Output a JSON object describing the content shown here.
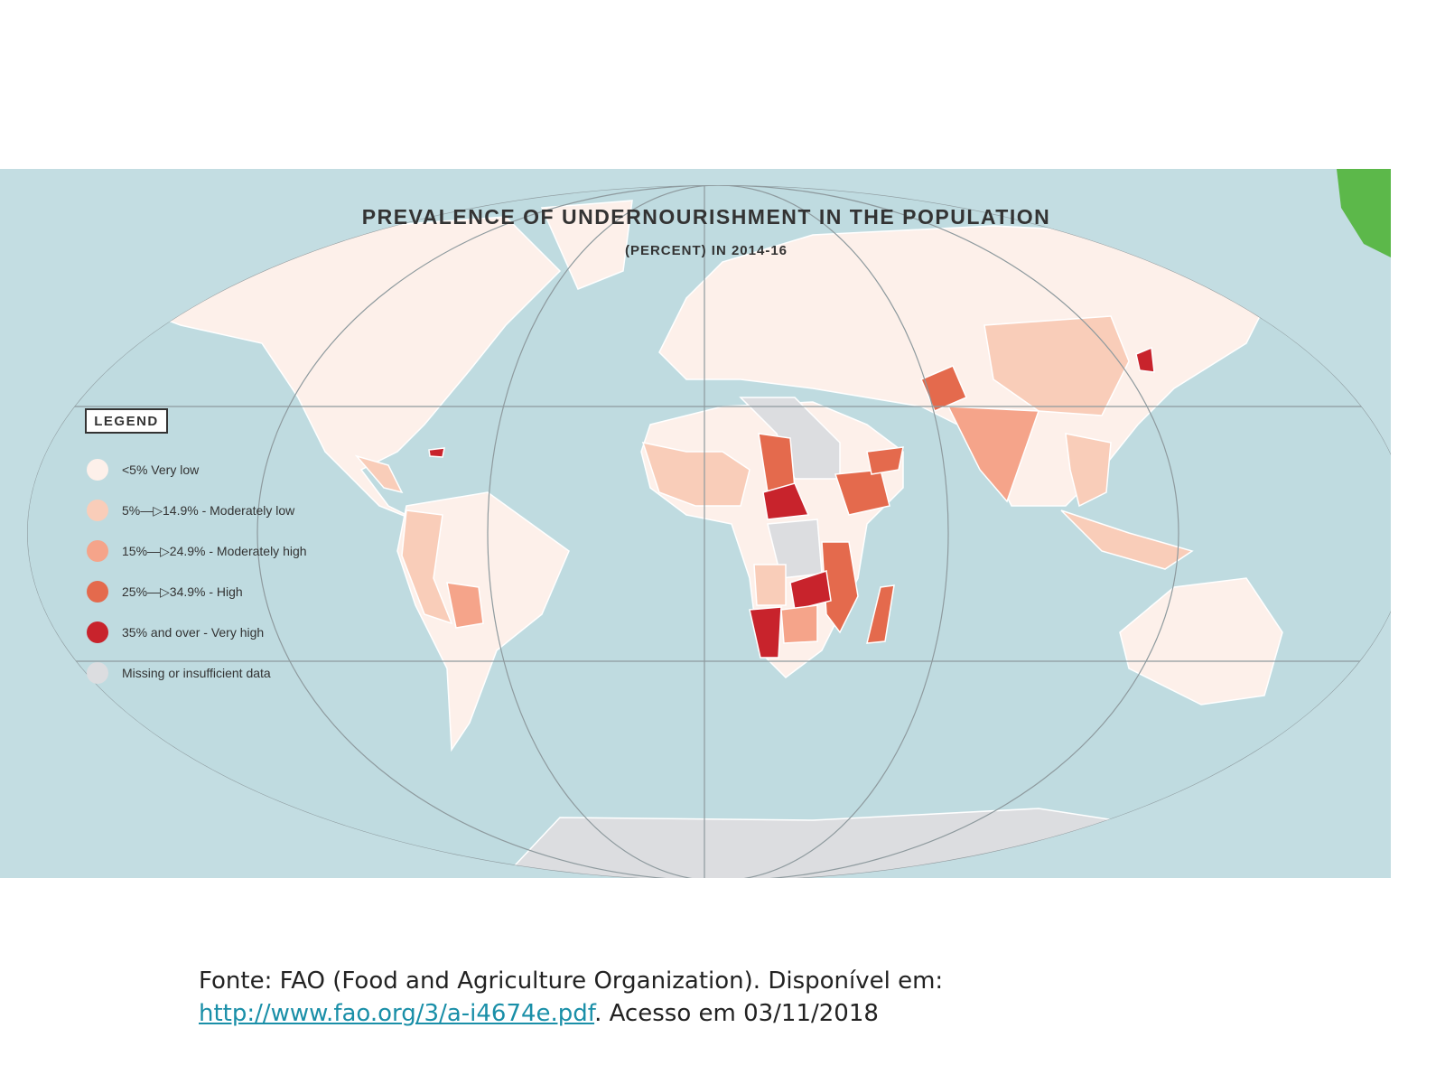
{
  "map": {
    "title": "PREVALENCE OF UNDERNOURISHMENT IN THE POPULATION",
    "subtitle": "(PERCENT) IN 2014-16",
    "legend": {
      "title": "LEGEND",
      "items": [
        {
          "label": "<5% Very low",
          "color": "#fdf0ea"
        },
        {
          "label": "5%—▷14.9% - Moderately low",
          "color": "#f9cdb9"
        },
        {
          "label": "15%—▷24.9% - Moderately high",
          "color": "#f5a48a"
        },
        {
          "label": "25%—▷34.9% - High",
          "color": "#e46a4d"
        },
        {
          "label": "35% and over - Very high",
          "color": "#c8232c"
        },
        {
          "label": "Missing or insufficient data",
          "color": "#dcdde0"
        }
      ]
    }
  },
  "caption": {
    "text": "Fonte: FAO (Food and Agriculture Organization). Disponível em:",
    "link": "http://www.fao.org/3/a-i4674e.pdf",
    "suffix": ". Acesso em 03/11/2018"
  }
}
